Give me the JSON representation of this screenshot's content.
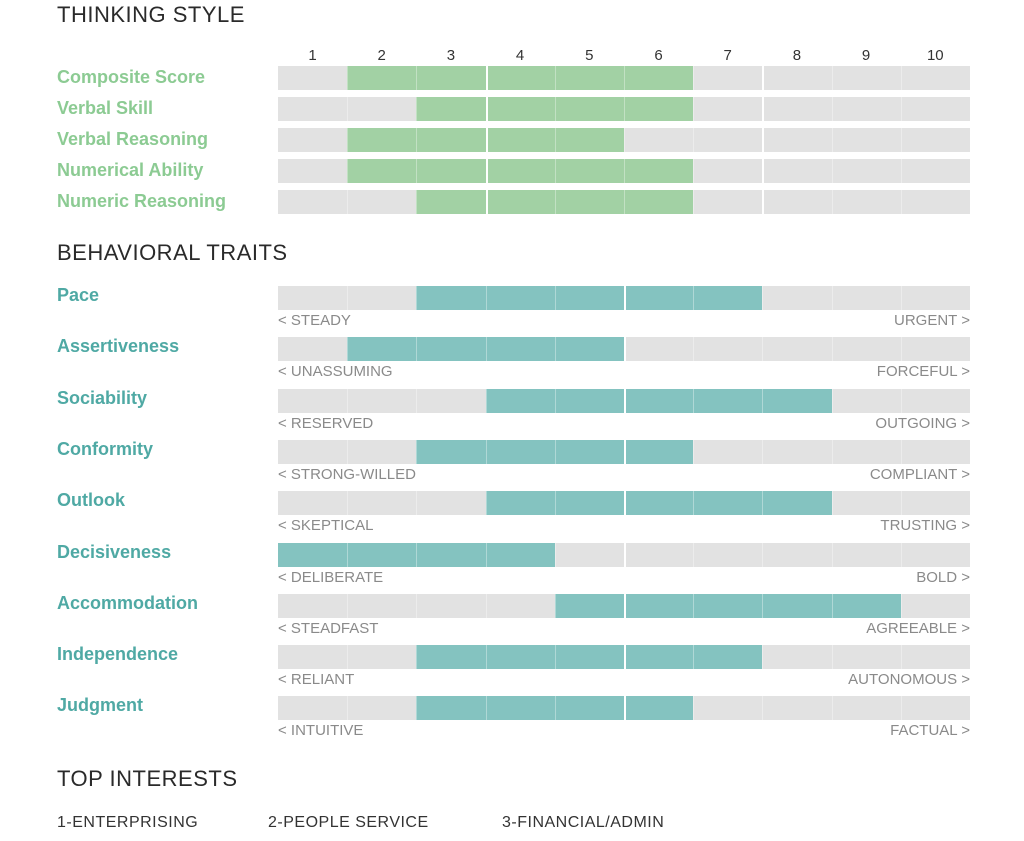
{
  "colors": {
    "thinking_fill": "#a2d1a4",
    "behavior_fill": "#84c3c0",
    "track": "#e2e2e2"
  },
  "thinking": {
    "title": "THINKING STYLE",
    "scale": [
      "1",
      "2",
      "3",
      "4",
      "5",
      "6",
      "7",
      "8",
      "9",
      "10"
    ],
    "rows": [
      {
        "label": "Composite Score",
        "from": 2,
        "to": 6
      },
      {
        "label": "Verbal Skill",
        "from": 3,
        "to": 6
      },
      {
        "label": "Verbal Reasoning",
        "from": 2,
        "to": 5
      },
      {
        "label": "Numerical Ability",
        "from": 2,
        "to": 6
      },
      {
        "label": "Numeric Reasoning",
        "from": 3,
        "to": 6
      }
    ]
  },
  "behavior": {
    "title": "BEHAVIORAL TRAITS",
    "rows": [
      {
        "label": "Pace",
        "left": "< STEADY",
        "right": "URGENT >",
        "from": 3,
        "to": 7
      },
      {
        "label": "Assertiveness",
        "left": "< UNASSUMING",
        "right": "FORCEFUL >",
        "from": 2,
        "to": 5
      },
      {
        "label": "Sociability",
        "left": "< RESERVED",
        "right": "OUTGOING >",
        "from": 4,
        "to": 8
      },
      {
        "label": "Conformity",
        "left": "< STRONG-WILLED",
        "right": "COMPLIANT >",
        "from": 3,
        "to": 6
      },
      {
        "label": "Outlook",
        "left": "< SKEPTICAL",
        "right": "TRUSTING >",
        "from": 4,
        "to": 8
      },
      {
        "label": "Decisiveness",
        "left": "< DELIBERATE",
        "right": "BOLD >",
        "from": 1,
        "to": 4
      },
      {
        "label": "Accommodation",
        "left": "< STEADFAST",
        "right": "AGREEABLE >",
        "from": 5,
        "to": 9
      },
      {
        "label": "Independence",
        "left": "< RELIANT",
        "right": "AUTONOMOUS >",
        "from": 3,
        "to": 7
      },
      {
        "label": "Judgment",
        "left": "< INTUITIVE",
        "right": "FACTUAL >",
        "from": 3,
        "to": 6
      }
    ]
  },
  "interests": {
    "title": "TOP INTERESTS",
    "items": [
      "1-ENTERPRISING",
      "2-PEOPLE SERVICE",
      "3-FINANCIAL/ADMIN"
    ]
  }
}
